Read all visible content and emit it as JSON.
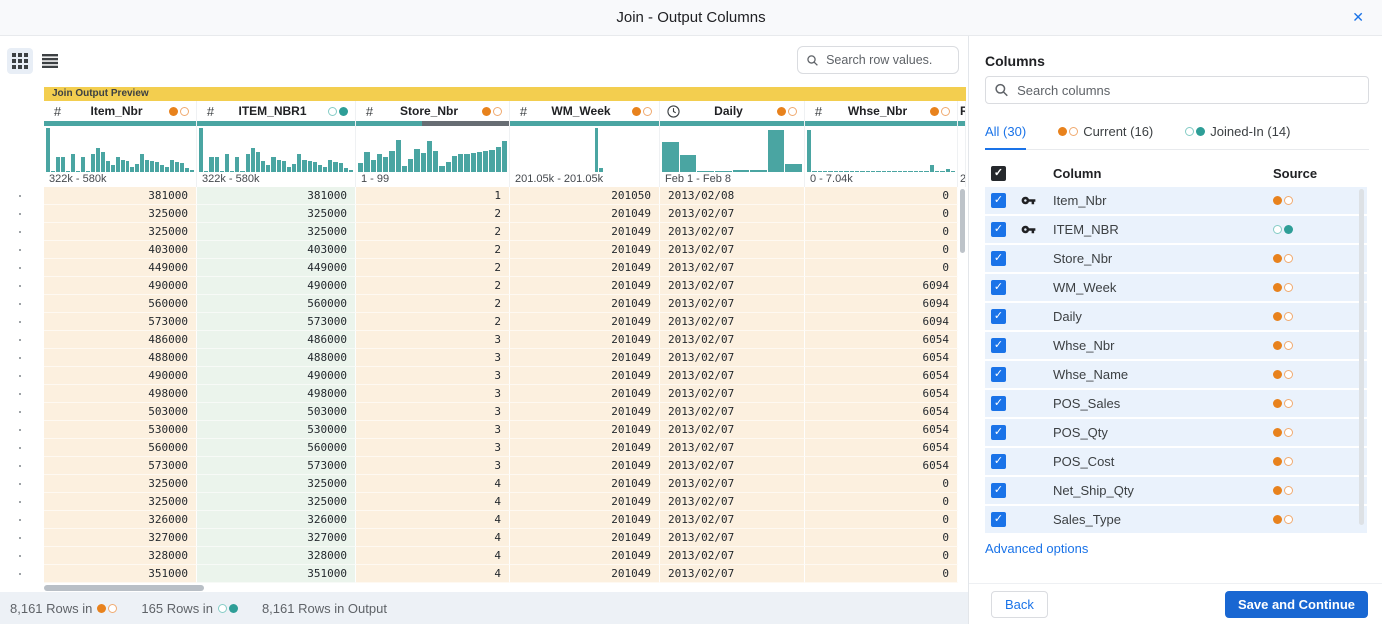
{
  "dialog": {
    "title": "Join - Output Columns",
    "close_glyph": "✕"
  },
  "toolbar": {
    "search_placeholder": "Search row values."
  },
  "preview": {
    "banner": "Join Output Preview",
    "columns": [
      {
        "name": "Item_Nbr",
        "icon": "hash",
        "source": "current",
        "width": 153,
        "bg": "#FCF0DF",
        "align": "right",
        "range": "322k - 580k",
        "invalid_pct": 0,
        "histogram": [
          100,
          3,
          33,
          33,
          3,
          42,
          2,
          33,
          3,
          40,
          55,
          45,
          25,
          15,
          33,
          28,
          25,
          12,
          18,
          40,
          28,
          25,
          22,
          15,
          12,
          28,
          22,
          20,
          10,
          5
        ]
      },
      {
        "name": "ITEM_NBR1",
        "icon": "hash",
        "source": "joined",
        "width": 159,
        "bg": "#EBF4EC",
        "align": "right",
        "range": "322k - 580k",
        "invalid_pct": 0,
        "histogram": [
          100,
          3,
          33,
          33,
          3,
          42,
          2,
          33,
          3,
          40,
          55,
          45,
          25,
          15,
          33,
          28,
          25,
          12,
          18,
          40,
          28,
          25,
          22,
          15,
          12,
          28,
          22,
          20,
          10,
          5
        ]
      },
      {
        "name": "Store_Nbr",
        "icon": "hash",
        "source": "current",
        "width": 154,
        "bg": "#FCF0DF",
        "align": "right",
        "range": "1 - 99",
        "invalid_pct": 57,
        "histogram": [
          20,
          45,
          28,
          40,
          33,
          47,
          73,
          13,
          30,
          52,
          43,
          70,
          48,
          13,
          22,
          36,
          40,
          41,
          43,
          46,
          48,
          50,
          56,
          70
        ]
      },
      {
        "name": "WM_Week",
        "icon": "hash",
        "source": "current",
        "width": 150,
        "bg": "#FCF0DF",
        "align": "right",
        "range": "201.05k - 201.05k",
        "invalid_pct": 0,
        "histogram": [
          0,
          0,
          0,
          0,
          0,
          0,
          0,
          0,
          0,
          0,
          0,
          0,
          0,
          0,
          0,
          0,
          0,
          100,
          8,
          0,
          0,
          0,
          0,
          0,
          0,
          0,
          0,
          0,
          0,
          0
        ]
      },
      {
        "name": "Daily",
        "icon": "clock",
        "source": "current",
        "width": 145,
        "bg": "#FCF0DF",
        "align": "left",
        "range": "Feb 1 - Feb 8",
        "invalid_pct": 0,
        "histogram": [
          68,
          38,
          2,
          2,
          4,
          4,
          95,
          18
        ]
      },
      {
        "name": "Whse_Nbr",
        "icon": "hash",
        "source": "current",
        "width": 153,
        "bg": "#FCF0DF",
        "align": "right",
        "range": "0 - 7.04k",
        "invalid_pct": 0,
        "histogram": [
          95,
          2,
          2,
          2,
          2,
          2,
          2,
          2,
          2,
          2,
          2,
          2,
          2,
          2,
          2,
          2,
          2,
          2,
          2,
          2,
          2,
          2,
          2,
          16,
          2,
          2,
          6,
          2
        ]
      }
    ],
    "partial_column": {
      "header": "R",
      "range": "2",
      "width": 8
    },
    "rows": [
      [
        "381000",
        "381000",
        "1",
        "201050",
        "2013/02/08",
        "0"
      ],
      [
        "325000",
        "325000",
        "2",
        "201049",
        "2013/02/07",
        "0"
      ],
      [
        "325000",
        "325000",
        "2",
        "201049",
        "2013/02/07",
        "0"
      ],
      [
        "403000",
        "403000",
        "2",
        "201049",
        "2013/02/07",
        "0"
      ],
      [
        "449000",
        "449000",
        "2",
        "201049",
        "2013/02/07",
        "0"
      ],
      [
        "490000",
        "490000",
        "2",
        "201049",
        "2013/02/07",
        "6094"
      ],
      [
        "560000",
        "560000",
        "2",
        "201049",
        "2013/02/07",
        "6094"
      ],
      [
        "573000",
        "573000",
        "2",
        "201049",
        "2013/02/07",
        "6094"
      ],
      [
        "486000",
        "486000",
        "3",
        "201049",
        "2013/02/07",
        "6054"
      ],
      [
        "488000",
        "488000",
        "3",
        "201049",
        "2013/02/07",
        "6054"
      ],
      [
        "490000",
        "490000",
        "3",
        "201049",
        "2013/02/07",
        "6054"
      ],
      [
        "498000",
        "498000",
        "3",
        "201049",
        "2013/02/07",
        "6054"
      ],
      [
        "503000",
        "503000",
        "3",
        "201049",
        "2013/02/07",
        "6054"
      ],
      [
        "530000",
        "530000",
        "3",
        "201049",
        "2013/02/07",
        "6054"
      ],
      [
        "560000",
        "560000",
        "3",
        "201049",
        "2013/02/07",
        "6054"
      ],
      [
        "573000",
        "573000",
        "3",
        "201049",
        "2013/02/07",
        "6054"
      ],
      [
        "325000",
        "325000",
        "4",
        "201049",
        "2013/02/07",
        "0"
      ],
      [
        "325000",
        "325000",
        "4",
        "201049",
        "2013/02/07",
        "0"
      ],
      [
        "326000",
        "326000",
        "4",
        "201049",
        "2013/02/07",
        "0"
      ],
      [
        "327000",
        "327000",
        "4",
        "201049",
        "2013/02/07",
        "0"
      ],
      [
        "328000",
        "328000",
        "4",
        "201049",
        "2013/02/07",
        "0"
      ],
      [
        "351000",
        "351000",
        "4",
        "201049",
        "2013/02/07",
        "0"
      ]
    ]
  },
  "status_bar": {
    "items": [
      {
        "label": "8,161 Rows in",
        "dots": "current"
      },
      {
        "label": "165 Rows in",
        "dots": "joined"
      },
      {
        "label": "8,161 Rows in Output"
      }
    ]
  },
  "sidebar": {
    "title": "Columns",
    "search_placeholder": "Search columns",
    "tabs": [
      {
        "label": "All (30)",
        "active": true
      },
      {
        "label": "Current (16)",
        "dots": "current"
      },
      {
        "label": "Joined-In (14)",
        "dots": "joined"
      }
    ],
    "list_header": {
      "column": "Column",
      "source": "Source"
    },
    "rows": [
      {
        "name": "Item_Nbr",
        "key": true,
        "checked": true,
        "source": "current"
      },
      {
        "name": "ITEM_NBR",
        "key": true,
        "checked": true,
        "source": "joined"
      },
      {
        "name": "Store_Nbr",
        "key": false,
        "checked": true,
        "source": "current"
      },
      {
        "name": "WM_Week",
        "key": false,
        "checked": true,
        "source": "current"
      },
      {
        "name": "Daily",
        "key": false,
        "checked": true,
        "source": "current"
      },
      {
        "name": "Whse_Nbr",
        "key": false,
        "checked": true,
        "source": "current"
      },
      {
        "name": "Whse_Name",
        "key": false,
        "checked": true,
        "source": "current"
      },
      {
        "name": "POS_Sales",
        "key": false,
        "checked": true,
        "source": "current"
      },
      {
        "name": "POS_Qty",
        "key": false,
        "checked": true,
        "source": "current"
      },
      {
        "name": "POS_Cost",
        "key": false,
        "checked": true,
        "source": "current"
      },
      {
        "name": "Net_Ship_Qty",
        "key": false,
        "checked": true,
        "source": "current"
      },
      {
        "name": "Sales_Type",
        "key": false,
        "checked": true,
        "source": "current"
      }
    ],
    "advanced_options": "Advanced options",
    "back_label": "Back",
    "save_label": "Save and Continue"
  },
  "colors": {
    "accent_blue": "#1A73E8",
    "save_button": "#1967D2",
    "histogram_teal": "#4AA5A2",
    "quality_invalid_gray": "#676D73",
    "banner_yellow": "#F3CE4F",
    "current_orange": "#E8821D",
    "joined_teal": "#2E9E97",
    "cell_peach": "#FCF0DF",
    "cell_green": "#EBF4EC",
    "sidebar_row_blue": "#EAF2FC",
    "status_bar_bg": "#EDF1F6"
  }
}
